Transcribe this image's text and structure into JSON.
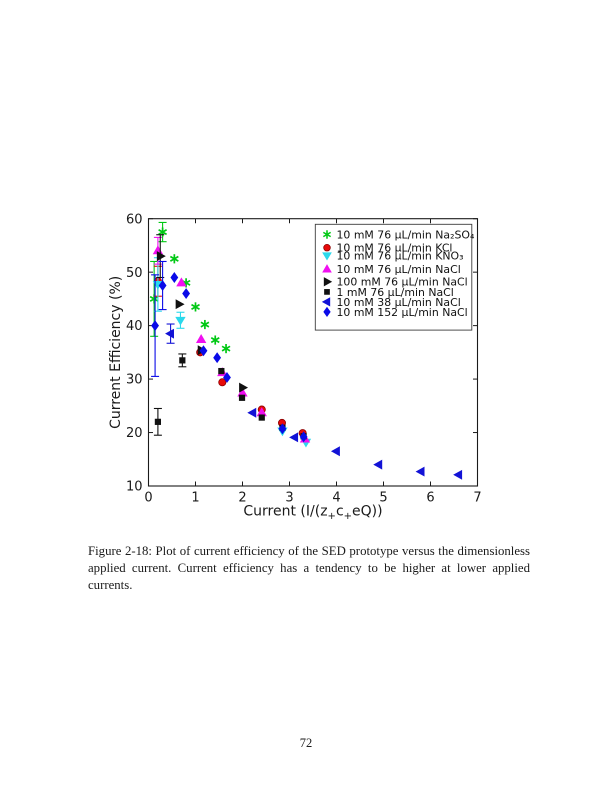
{
  "page": {
    "number": "72"
  },
  "figure": {
    "caption": "Figure 2-18: Plot of current efficiency of the SED prototype versus the dimensionless applied current.  Current efficiency has a tendency to be higher at lower applied currents."
  },
  "chart_data": {
    "type": "scatter",
    "title": "",
    "xlabel": "Current (I/(z+c+eQ))",
    "xlabel_parts": [
      {
        "t": "Current (I/(z"
      },
      {
        "t": "+",
        "sub": true
      },
      {
        "t": "c"
      },
      {
        "t": "+",
        "sub": true
      },
      {
        "t": "eQ))"
      }
    ],
    "ylabel": "Current Efficiency (%)",
    "xlim": [
      0,
      7
    ],
    "ylim": [
      10,
      60
    ],
    "xticks": [
      0,
      1,
      2,
      3,
      4,
      5,
      6,
      7
    ],
    "yticks": [
      10,
      20,
      30,
      40,
      50,
      60
    ],
    "grid": false,
    "legend_position": "top-right",
    "axis_color": "#1a1a1a",
    "series": [
      {
        "label": "10 mM 76 µL/min Na₂SO₄",
        "marker": "star",
        "color": "#00C814",
        "points": [
          [
            0.12,
            45,
            7
          ],
          [
            0.3,
            57.5,
            1.8
          ],
          [
            0.55,
            52.5
          ],
          [
            0.8,
            48
          ],
          [
            1.0,
            43.5
          ],
          [
            1.2,
            40.2
          ],
          [
            1.42,
            37.3
          ],
          [
            1.65,
            35.7
          ]
        ]
      },
      {
        "label": "10 mM 76 µL/min KCl",
        "marker": "circle",
        "color": "#E80A0A",
        "points": [
          [
            0.2,
            48.3,
            2.8
          ],
          [
            1.1,
            35
          ],
          [
            1.57,
            29.4
          ],
          [
            2.41,
            24.3
          ],
          [
            2.84,
            21.8
          ],
          [
            3.28,
            19.9
          ]
        ]
      },
      {
        "label": "10 mM 76 µL/min KNO₃",
        "marker": "triangle-down",
        "color": "#2BD9EC",
        "points": [
          [
            0.2,
            47.7,
            5
          ],
          [
            0.68,
            41,
            1.5
          ],
          [
            2.85,
            20.3
          ],
          [
            3.35,
            18.2
          ]
        ]
      },
      {
        "label": "10 mM 76 µL/min NaCl",
        "marker": "triangle-up",
        "color": "#F00FF0",
        "points": [
          [
            0.2,
            54,
            2.5
          ],
          [
            0.7,
            48
          ],
          [
            1.12,
            37.4
          ],
          [
            1.57,
            31.2
          ],
          [
            2.0,
            27.4
          ],
          [
            2.41,
            23.7
          ],
          [
            3.33,
            18.8
          ]
        ]
      },
      {
        "label": "100 mM 76 µL/min NaCl",
        "marker": "triangle-right",
        "color": "#111111",
        "points": [
          [
            0.25,
            53,
            4
          ],
          [
            0.65,
            44
          ],
          [
            1.12,
            35.4
          ],
          [
            2.0,
            28.4
          ]
        ]
      },
      {
        "label": "1 mM 76 µL/min NaCl",
        "marker": "square",
        "color": "#111111",
        "points": [
          [
            0.2,
            22,
            2.5
          ],
          [
            0.72,
            33.5,
            1.2
          ],
          [
            1.55,
            31.5
          ],
          [
            1.99,
            26.5
          ],
          [
            2.41,
            22.8
          ],
          [
            2.85,
            20.9
          ],
          [
            3.3,
            19.3
          ]
        ]
      },
      {
        "label": "10 mM 38 µL/min NaCl",
        "marker": "triangle-left",
        "color": "#1212D6",
        "points": [
          [
            0.47,
            38.5,
            1.8
          ],
          [
            2.22,
            23.7
          ],
          [
            3.11,
            19.1
          ],
          [
            4.0,
            16.5
          ],
          [
            4.9,
            14.0
          ],
          [
            5.8,
            12.7
          ],
          [
            6.6,
            12.1
          ]
        ]
      },
      {
        "label": "10 mM 152 µL/min NaCl",
        "marker": "diamond",
        "color": "#0A0AE8",
        "points": [
          [
            0.14,
            40,
            9.5
          ],
          [
            0.3,
            47.5,
            4.5
          ],
          [
            0.55,
            49
          ],
          [
            0.8,
            46
          ],
          [
            1.17,
            35.3
          ],
          [
            1.46,
            34
          ],
          [
            1.67,
            30.3
          ],
          [
            2.85,
            20.7
          ],
          [
            3.3,
            19.2
          ]
        ]
      }
    ]
  }
}
